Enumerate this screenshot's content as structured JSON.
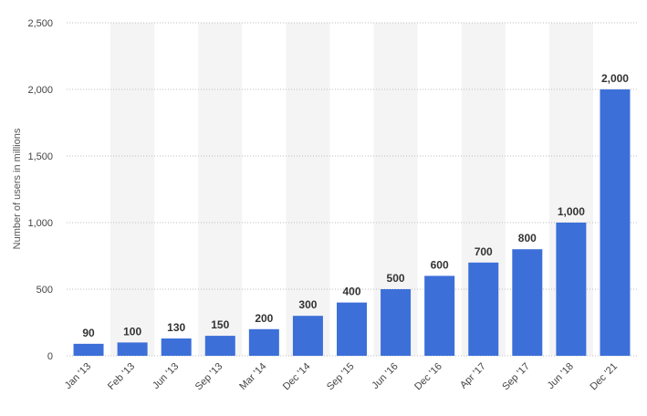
{
  "chart_data": {
    "type": "bar",
    "title": "",
    "xlabel": "",
    "ylabel": "Number of users in millions",
    "categories": [
      "Jan '13",
      "Feb '13",
      "Jun '13",
      "Sep '13",
      "Mar '14",
      "Dec '14",
      "Sep '15",
      "Jun '16",
      "Dec '16",
      "Apr '17",
      "Sep '17",
      "Jun '18",
      "Dec '21"
    ],
    "values": [
      90,
      100,
      130,
      150,
      200,
      300,
      400,
      500,
      600,
      700,
      800,
      1000,
      2000
    ],
    "data_labels": [
      "90",
      "100",
      "130",
      "150",
      "200",
      "300",
      "400",
      "500",
      "600",
      "700",
      "800",
      "1,000",
      "2,000"
    ],
    "y_ticks": [
      0,
      500,
      1000,
      1500,
      2000,
      2500
    ],
    "y_tick_labels": [
      "0",
      "500",
      "1,000",
      "1,500",
      "2,000",
      "2,500"
    ],
    "ylim": [
      0,
      2500
    ],
    "grid": true,
    "bar_color": "#3d6fd9"
  }
}
